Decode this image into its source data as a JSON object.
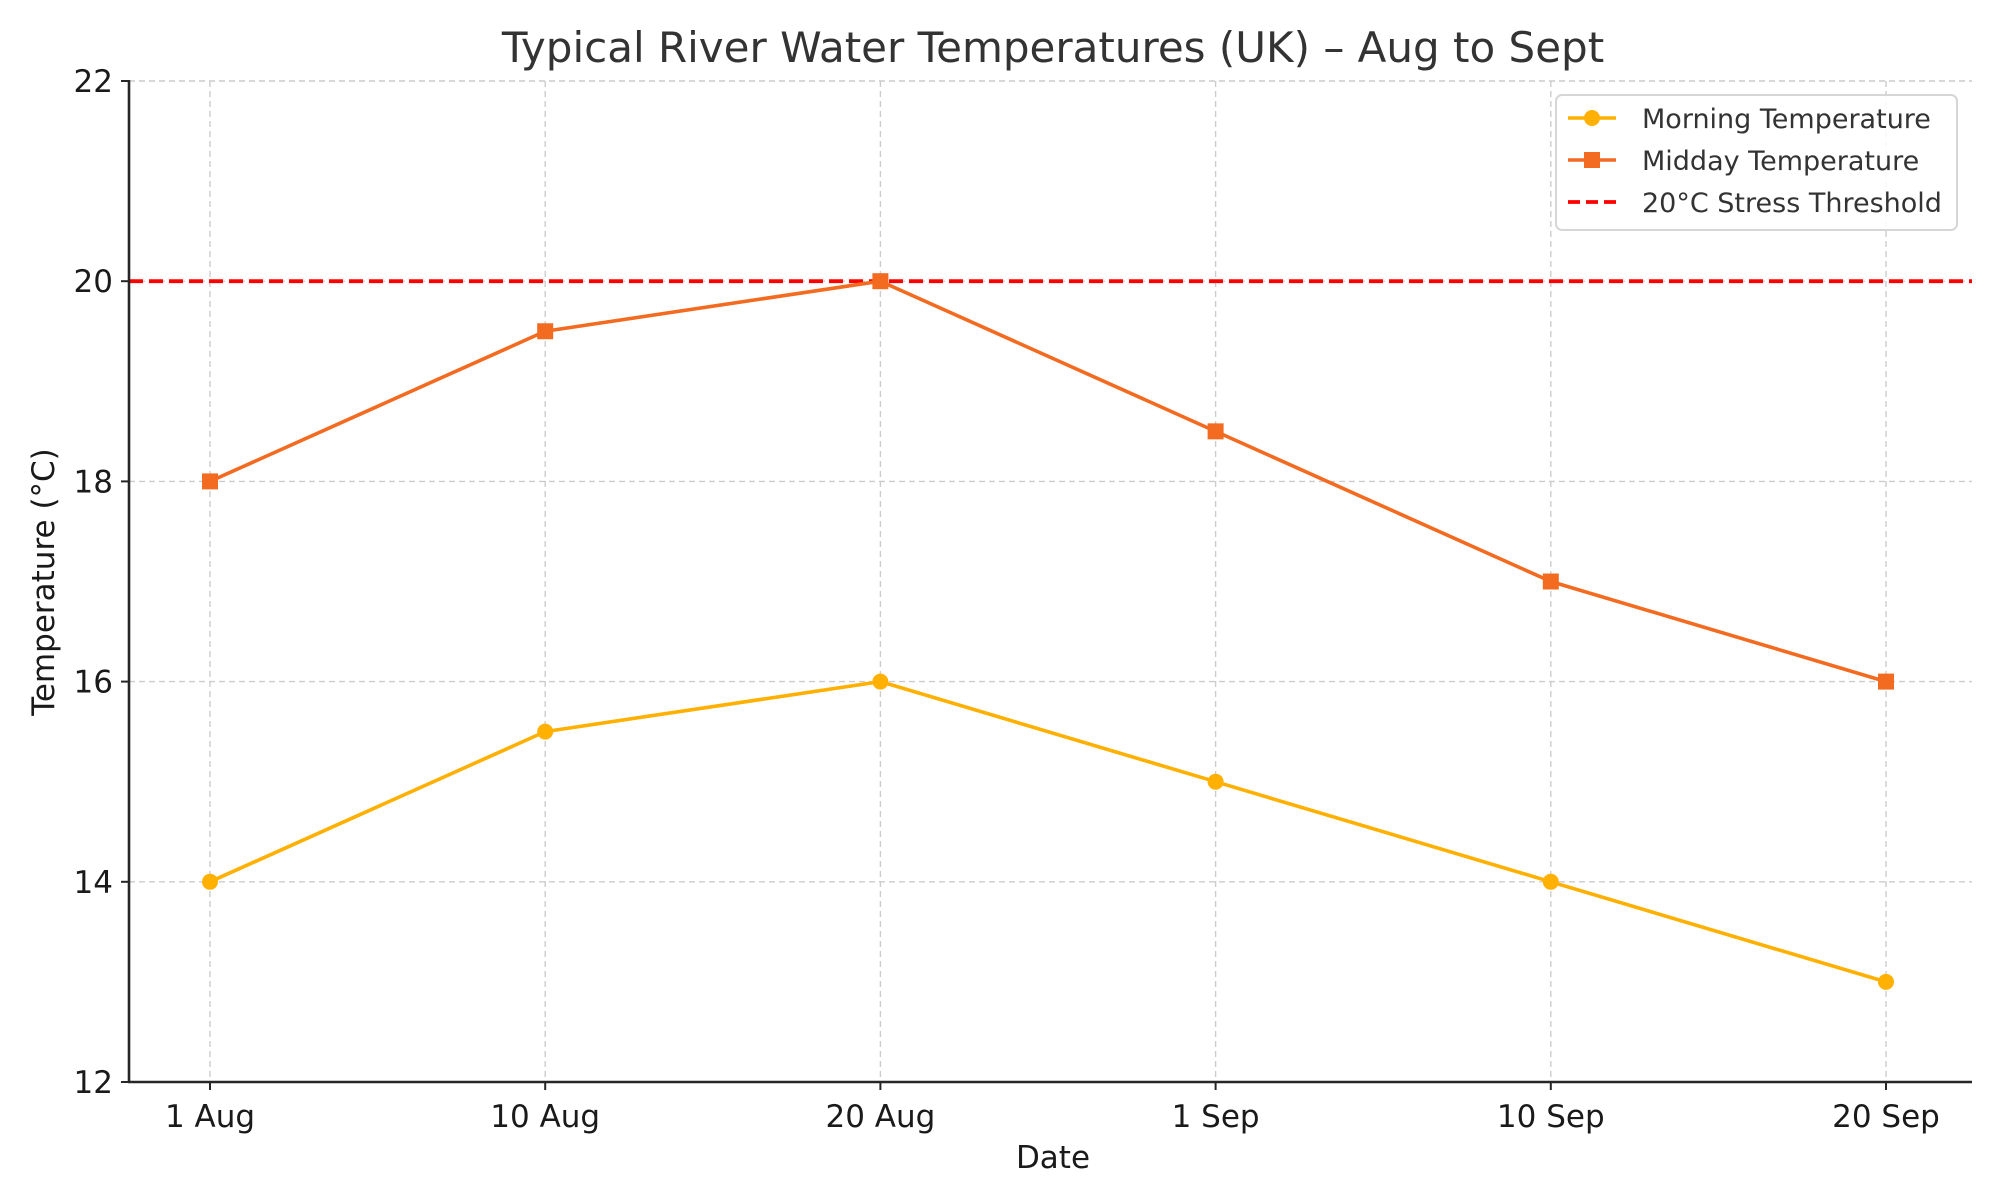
{
  "chart_data": {
    "type": "line",
    "title": "Typical River Water Temperatures (UK) – Aug to Sept",
    "xlabel": "Date",
    "ylabel": "Temperature (°C)",
    "categories": [
      "1 Aug",
      "10 Aug",
      "20 Aug",
      "1 Sep",
      "10 Sep",
      "20 Sep"
    ],
    "ylim": [
      12,
      22
    ],
    "yticks": [
      12,
      14,
      16,
      18,
      20,
      22
    ],
    "grid": true,
    "legend_position": "top-right",
    "series": [
      {
        "name": "Morning Temperature",
        "marker": "circle",
        "color": "#FFB000",
        "values": [
          14,
          15.5,
          16,
          15,
          14,
          13
        ]
      },
      {
        "name": "Midday Temperature",
        "marker": "square",
        "color": "#F26B21",
        "values": [
          18,
          19.5,
          20,
          18.5,
          17,
          16
        ]
      }
    ],
    "reference_lines": [
      {
        "name": "20°C Stress Threshold",
        "y": 20,
        "style": "dashed",
        "color": "#FF0000"
      }
    ]
  }
}
